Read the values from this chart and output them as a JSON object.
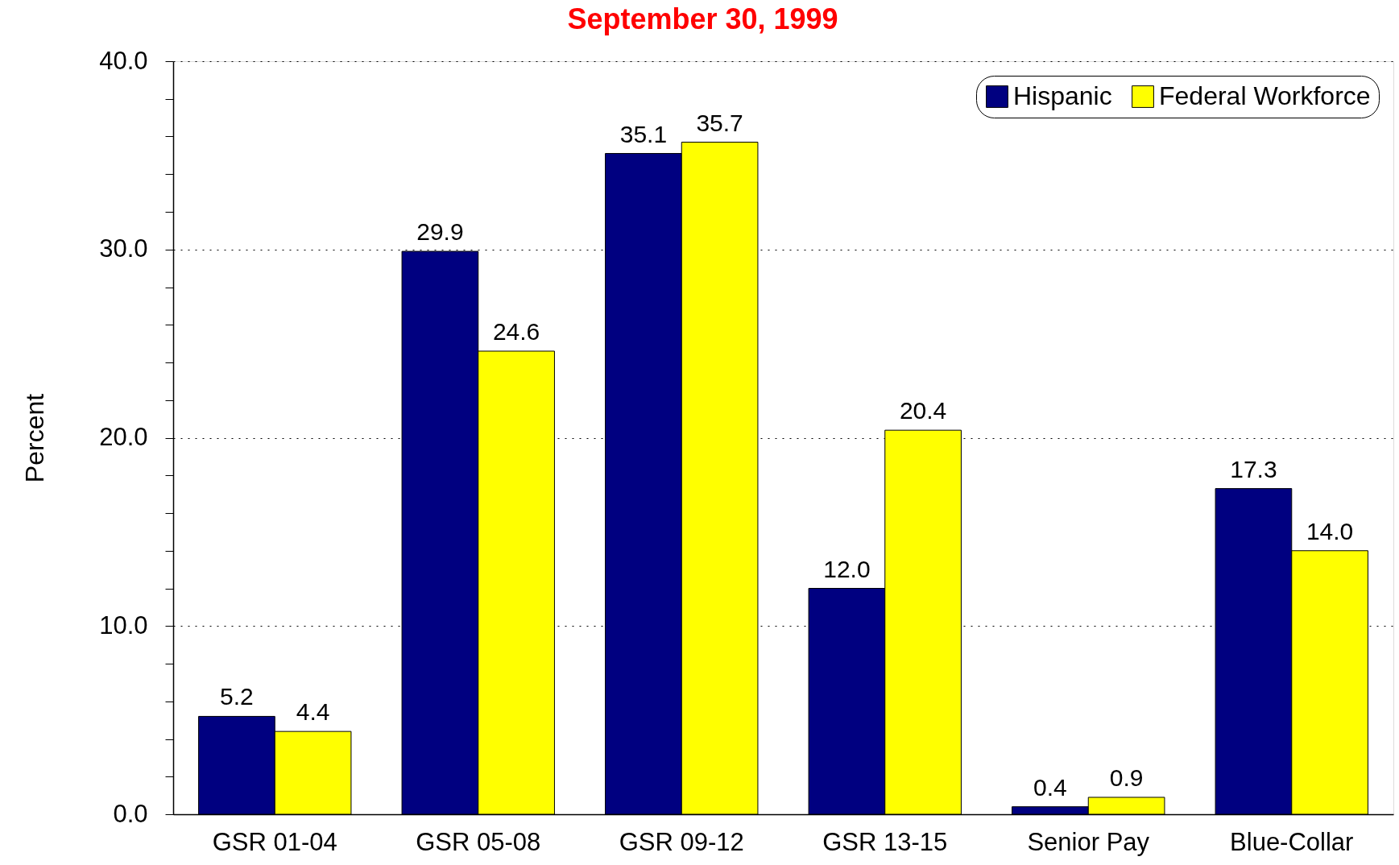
{
  "chart_data": {
    "type": "bar",
    "title": "September 30, 1999",
    "ylabel": "Percent",
    "categories": [
      "GSR 01-04",
      "GSR 05-08",
      "GSR 09-12",
      "GSR 13-15",
      "Senior Pay",
      "Blue-Collar"
    ],
    "series": [
      {
        "name": "Hispanic",
        "color": "#000080",
        "values": [
          5.2,
          29.9,
          35.1,
          12,
          0.4,
          17.3
        ],
        "value_labels": [
          "5.2",
          "29.9",
          "35.1",
          "12.0",
          "0.4",
          "17.3"
        ]
      },
      {
        "name": "Federal Workforce",
        "color": "#ffff00",
        "values": [
          4.4,
          24.6,
          35.7,
          20.4,
          0.9,
          14
        ],
        "value_labels": [
          "4.4",
          "24.6",
          "35.7",
          "20.4",
          "0.9",
          "14.0"
        ]
      }
    ],
    "ylim": [
      0,
      40
    ],
    "yticks": [
      {
        "value": 0,
        "label": "0.0"
      },
      {
        "value": 2,
        "label": null
      },
      {
        "value": 4,
        "label": null
      },
      {
        "value": 6,
        "label": null
      },
      {
        "value": 8,
        "label": null
      },
      {
        "value": 10,
        "label": "10.0"
      },
      {
        "value": 12,
        "label": null
      },
      {
        "value": 14,
        "label": null
      },
      {
        "value": 16,
        "label": null
      },
      {
        "value": 18,
        "label": null
      },
      {
        "value": 20,
        "label": "20.0"
      },
      {
        "value": 22,
        "label": null
      },
      {
        "value": 24,
        "label": null
      },
      {
        "value": 26,
        "label": null
      },
      {
        "value": 28,
        "label": null
      },
      {
        "value": 30,
        "label": "30.0"
      },
      {
        "value": 32,
        "label": null
      },
      {
        "value": 34,
        "label": null
      },
      {
        "value": 36,
        "label": null
      },
      {
        "value": 38,
        "label": null
      },
      {
        "value": 40,
        "label": "40.0"
      }
    ],
    "grid": "y",
    "legend": "top right"
  }
}
